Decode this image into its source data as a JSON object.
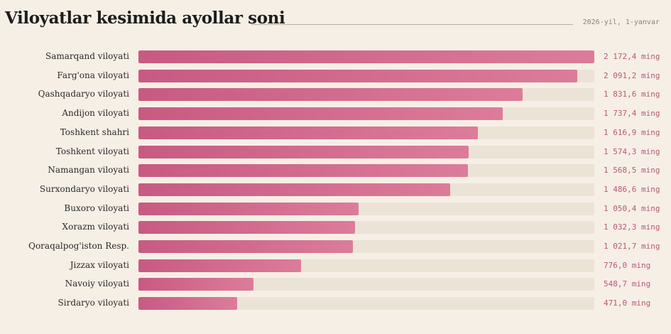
{
  "header": {
    "title": "Viloyatlar kesimida ayollar soni",
    "date": "2026-yil, 1-yanvar"
  },
  "colors": {
    "bar_start": "#c85a82",
    "bar_end": "#dc7c9a",
    "track": "#ebe3d6",
    "value_text": "#b7587a",
    "background": "#f6efe6"
  },
  "chart_data": {
    "type": "bar",
    "orientation": "horizontal",
    "unit": "ming",
    "xlim": [
      0,
      2172.4
    ],
    "categories": [
      "Samarqand viloyati",
      "Farg'ona viloyati",
      "Qashqadaryo viloyati",
      "Andijon viloyati",
      "Toshkent shahri",
      "Toshkent viloyati",
      "Namangan viloyati",
      "Surxondaryo viloyati",
      "Buxoro viloyati",
      "Xorazm viloyati",
      "Qoraqalpog'iston Resp.",
      "Jizzax viloyati",
      "Navoiy viloyati",
      "Sirdaryo viloyati"
    ],
    "values": [
      2172.4,
      2091.2,
      1831.6,
      1737.4,
      1616.9,
      1574.3,
      1568.5,
      1486.6,
      1050.4,
      1032.3,
      1021.7,
      776.0,
      548.7,
      471.0
    ],
    "value_labels": [
      "2 172,4 ming",
      "2 091,2 ming",
      "1 831,6 ming",
      "1 737,4 ming",
      "1 616,9 ming",
      "1 574,3 ming",
      "1 568,5 ming",
      "1 486,6 ming",
      "1 050,4 ming",
      "1 032,3 ming",
      "1 021,7 ming",
      "776,0 ming",
      "548,7 ming",
      "471,0 ming"
    ]
  }
}
